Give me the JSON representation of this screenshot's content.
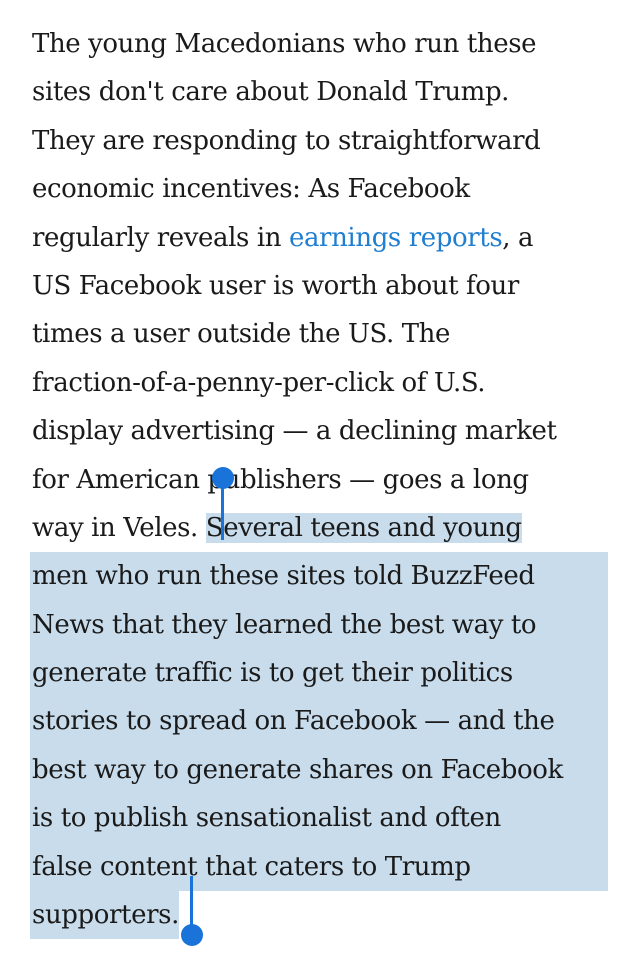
{
  "article": {
    "paragraph": {
      "lines": [
        "The young Macedonians who run these",
        "sites don't care about Donald Trump.",
        "They are responding to straightforward",
        "economic incentives: As Facebook",
        "US Facebook user is worth about four",
        "times a user outside the US. The",
        "fraction-of-a-penny-per-click of U.S.",
        "display advertising — a declining market",
        "for American publishers — goes a long"
      ],
      "line5_before_link": "regularly reveals in ",
      "link_text": "earnings reports",
      "line5_after_link": ", a",
      "line11_unselected": "way in Veles. ",
      "line11_selected": "Several teens and young",
      "selected_lines": [
        "men who run these sites told BuzzFeed",
        "News that they learned the best way to",
        "generate traffic is to get their politics",
        "stories to spread on Facebook — and the",
        "best way to generate shares on Facebook",
        "is to publish sensationalist and often",
        "false content that caters to Trump"
      ],
      "last_line_selected": "supporters."
    }
  },
  "colors": {
    "link": "#1f7ed0",
    "selection": "#c8dcec",
    "handle": "#1a73d9"
  }
}
